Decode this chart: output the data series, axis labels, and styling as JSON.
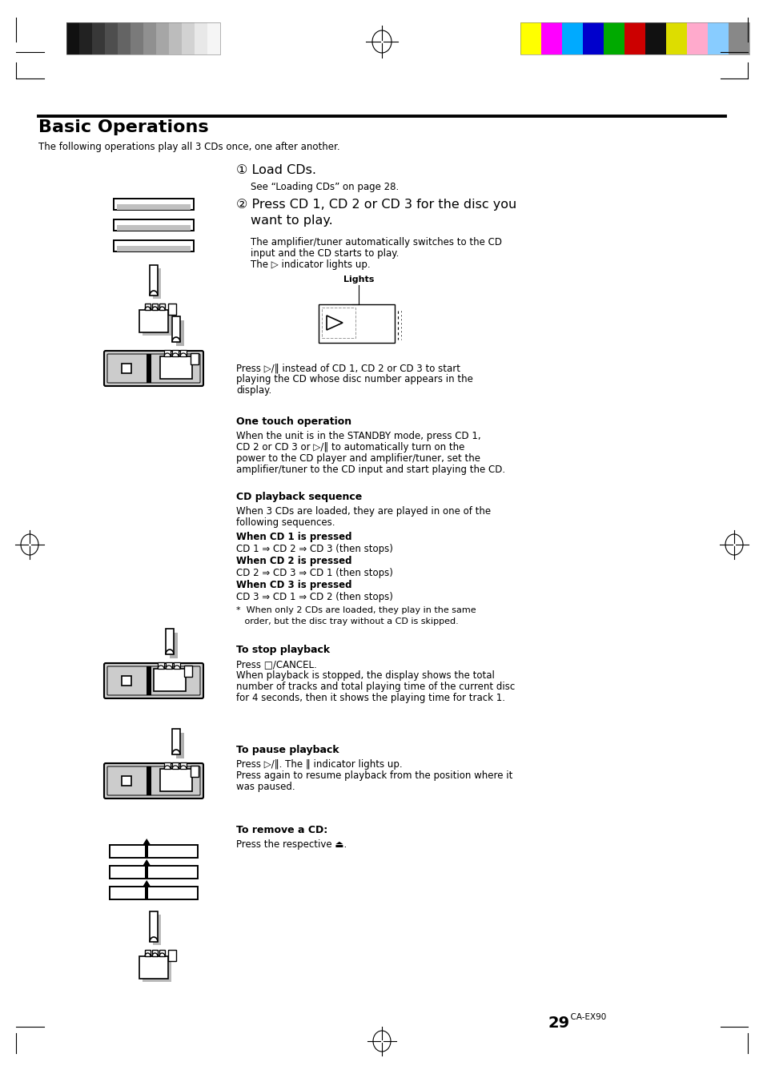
{
  "page_bg": "#ffffff",
  "header_bar_colors_left": [
    "#111111",
    "#222222",
    "#383838",
    "#4e4e4e",
    "#646464",
    "#7a7a7a",
    "#909090",
    "#a6a6a6",
    "#bcbcbc",
    "#d2d2d2",
    "#e8e8e8",
    "#f5f5f5"
  ],
  "header_bar_colors_right": [
    "#ffff00",
    "#ff00ff",
    "#00aaff",
    "#0000cc",
    "#00aa00",
    "#cc0000",
    "#111111",
    "#dddd00",
    "#ffaacc",
    "#88ccff",
    "#888888"
  ],
  "title": "Basic Operations",
  "subtitle": "The following operations play all 3 CDs once, one after another.",
  "step1_num": "①",
  "step1_title": "Load CDs.",
  "step1_sub": "See “Loading CDs” on page 28.",
  "step2_num": "②",
  "step2_line1": "Press CD 1, CD 2 or CD 3 for the disc you",
  "step2_line2": "want to play.",
  "step2_body1": "The amplifier/tuner automatically switches to the CD",
  "step2_body2": "input and the CD starts to play.",
  "step2_body3": "The ▷ indicator lights up.",
  "lights_label": "Lights",
  "press_play_text1": "Press ▷/‖ instead of CD 1, CD 2 or CD 3 to start",
  "press_play_text2": "playing the CD whose disc number appears in the",
  "press_play_text3": "display.",
  "section1_title": "One touch operation",
  "section1_body1": "When the unit is in the STANDBY mode, press CD 1,",
  "section1_body2": "CD 2 or CD 3 or ▷/‖ to automatically turn on the",
  "section1_body3": "power to the CD player and amplifier/tuner, set the",
  "section1_body4": "amplifier/tuner to the CD input and start playing the CD.",
  "section2_title": "CD playback sequence",
  "section2_body1": "When 3 CDs are loaded, they are played in one of the",
  "section2_body2": "following sequences.",
  "seq1_bold": "When CD 1 is pressed",
  "seq1_text": "CD 1 ⇒ CD 2 ⇒ CD 3 (then stops)",
  "seq2_bold": "When CD 2 is pressed",
  "seq2_text": "CD 2 ⇒ CD 3 ⇒ CD 1 (then stops)",
  "seq3_bold": "When CD 3 is pressed",
  "seq3_text": "CD 3 ⇒ CD 1 ⇒ CD 2 (then stops)",
  "seq_note1": "*  When only 2 CDs are loaded, they play in the same",
  "seq_note2": "   order, but the disc tray without a CD is skipped.",
  "stop_title": "To stop playback",
  "stop_body1": "Press □/CANCEL.",
  "stop_body2": "When playback is stopped, the display shows the total",
  "stop_body3": "number of tracks and total playing time of the current disc",
  "stop_body4": "for 4 seconds, then it shows the playing time for track 1.",
  "pause_title": "To pause playback",
  "pause_body1": "Press ▷/‖. The ‖ indicator lights up.",
  "pause_body2": "Press again to resume playback from the position where it",
  "pause_body3": "was paused.",
  "remove_title": "To remove a CD:",
  "remove_body": "Press the respective ⏏.",
  "page_num": "29",
  "page_model": "CA-EX90"
}
